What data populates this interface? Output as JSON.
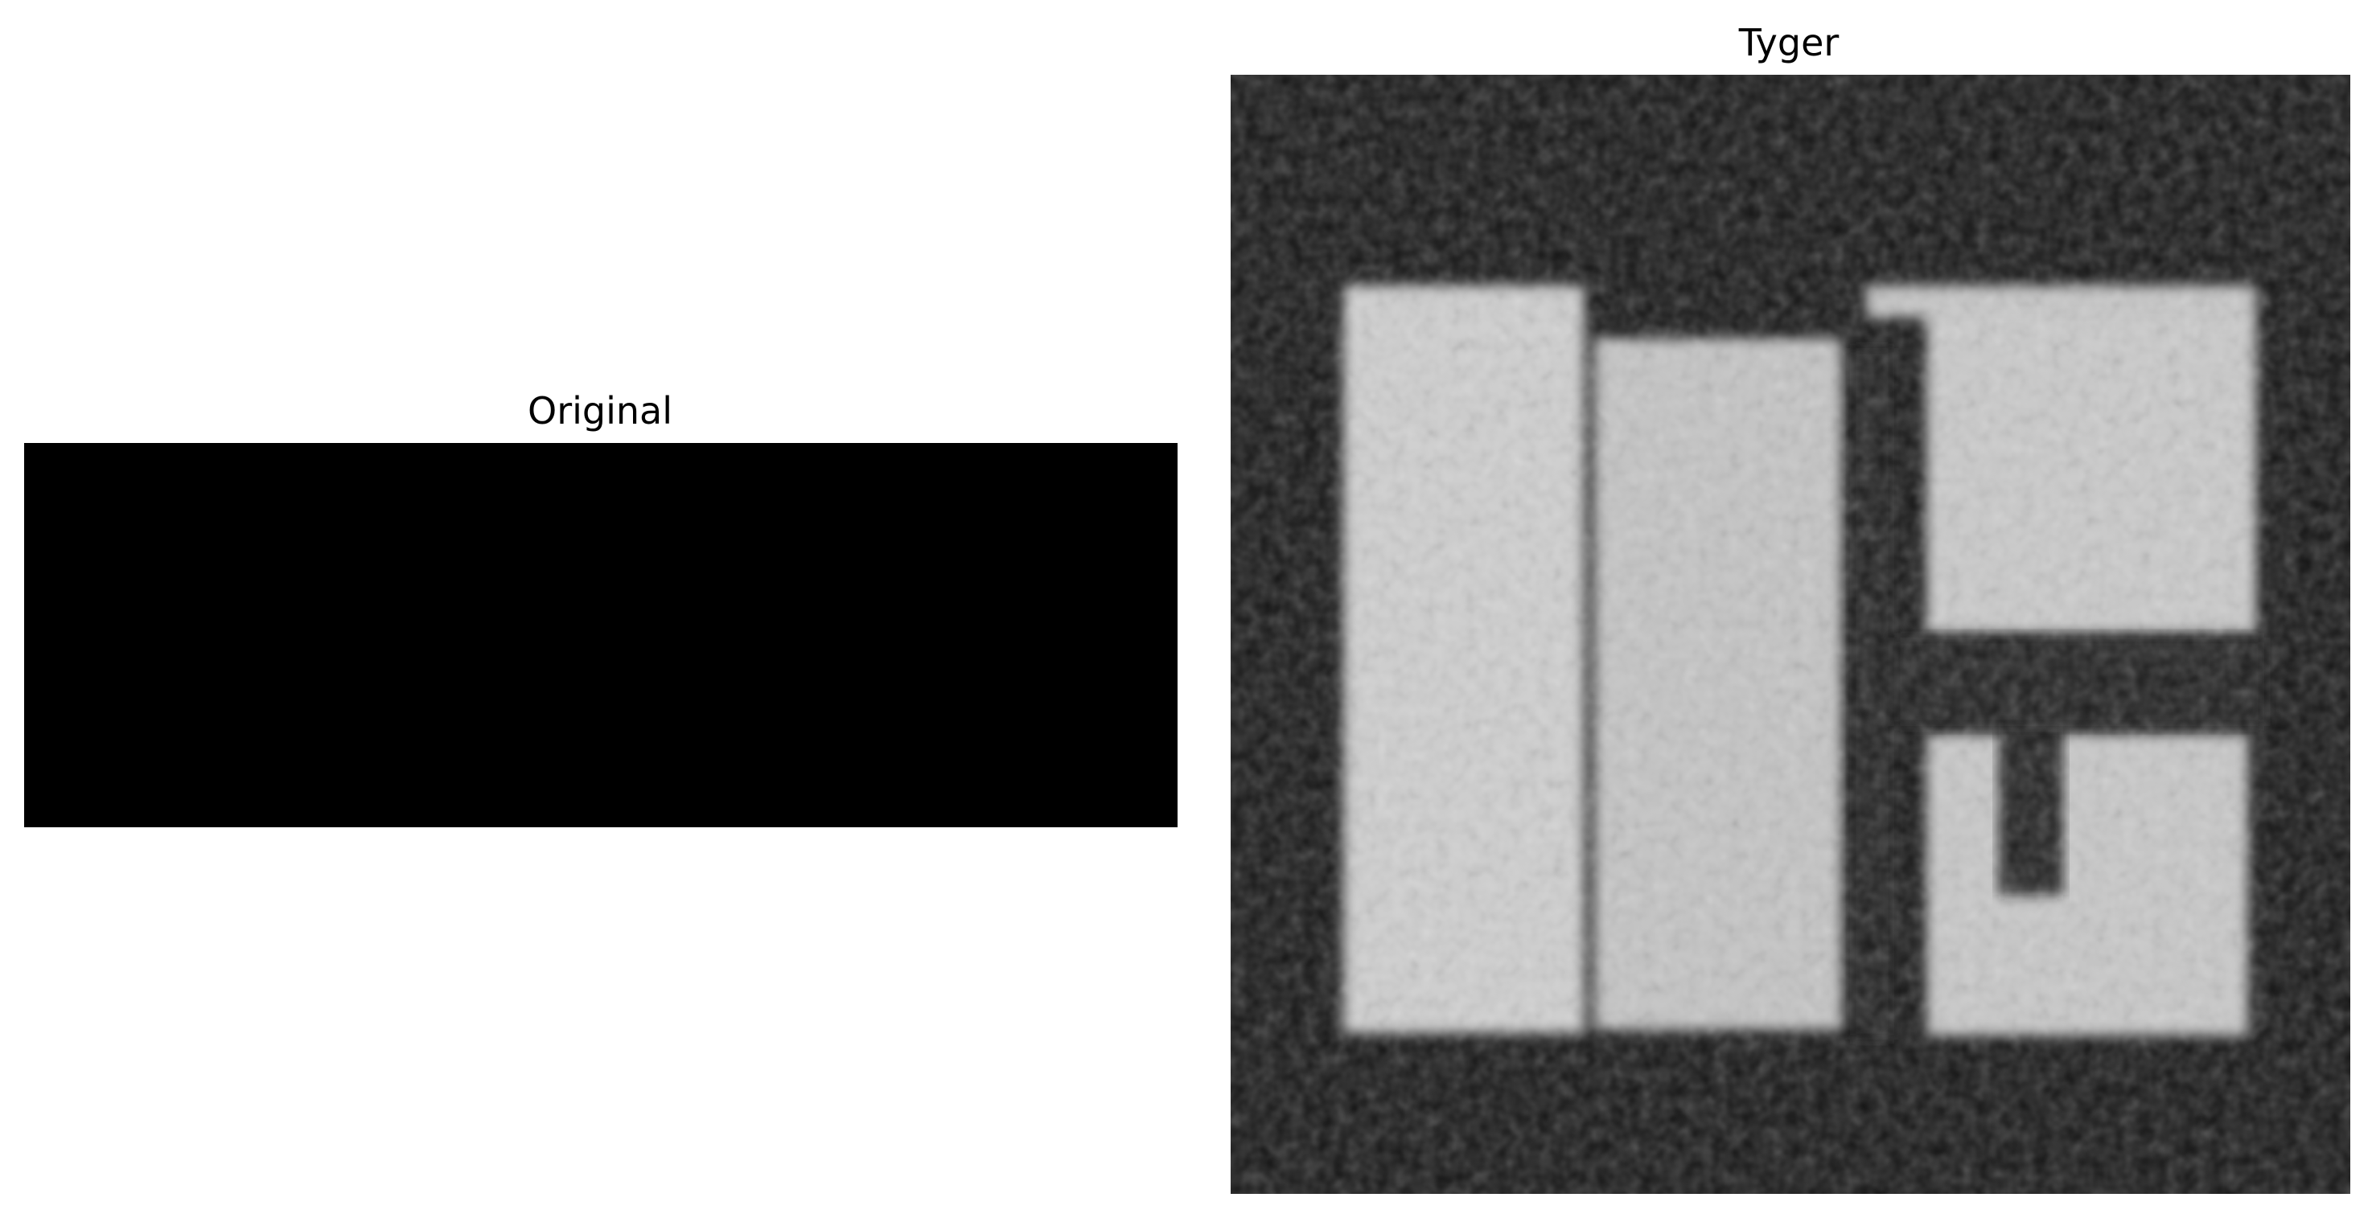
{
  "panels": [
    {
      "title": "Original",
      "fill_color": "#000000"
    },
    {
      "title": "Tyger",
      "background_color": "#141414",
      "highlight_color": "#d2d2d2"
    }
  ]
}
